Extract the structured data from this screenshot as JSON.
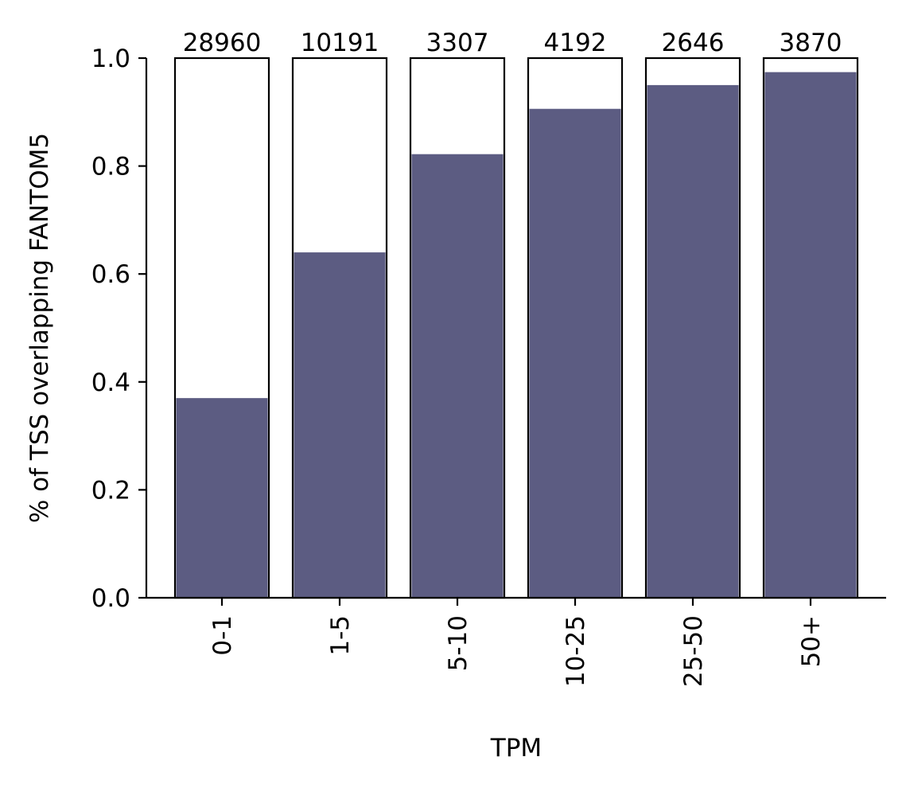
{
  "chart_data": {
    "type": "bar",
    "categories": [
      "0-1",
      "1-5",
      "5-10",
      "10-25",
      "25-50",
      "50+"
    ],
    "values": [
      0.37,
      0.64,
      0.822,
      0.906,
      0.95,
      0.974
    ],
    "totals": [
      1.0,
      1.0,
      1.0,
      1.0,
      1.0,
      1.0
    ],
    "counts": [
      "28960",
      "10191",
      "3307",
      "4192",
      "2646",
      "3870"
    ],
    "xlabel": "TPM",
    "ylabel": "% of TSS overlapping FANTOM5",
    "ylim": [
      0,
      1.0
    ],
    "yticks": [
      "0.0",
      "0.2",
      "0.4",
      "0.6",
      "0.8",
      "1.0"
    ],
    "grid": false,
    "colors": {
      "fill": "#5c5c82",
      "outline": "#000000",
      "background": "#ffffff"
    }
  }
}
